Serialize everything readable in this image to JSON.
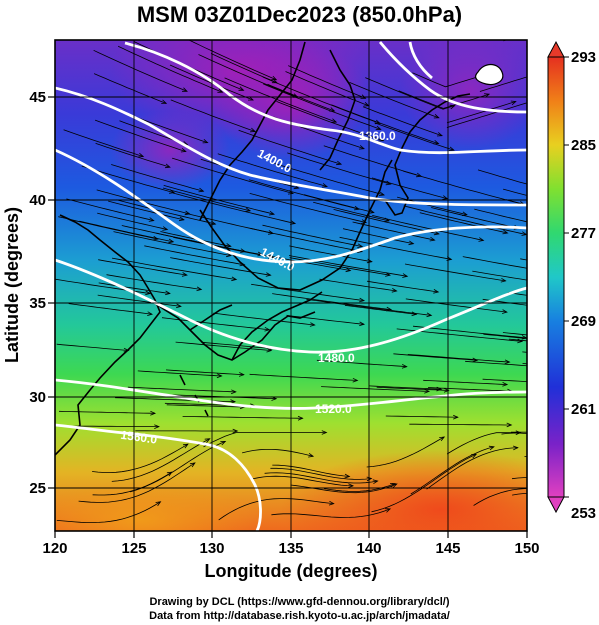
{
  "title": "MSM 03Z01Dec2023 (850.0hPa)",
  "axes": {
    "xlabel": "Longitude (degrees)",
    "ylabel": "Latitude  (degrees)",
    "x_range": [
      120,
      150
    ],
    "y_range": [
      22.4,
      47.6
    ],
    "x_ticks": [
      "120",
      "125",
      "130",
      "135",
      "140",
      "145",
      "150"
    ],
    "y_ticks": [
      "25",
      "30",
      "35",
      "40",
      "45"
    ]
  },
  "colorbar": {
    "ticks": [
      "293",
      "285",
      "277",
      "269",
      "261",
      "253"
    ],
    "range": [
      253,
      293
    ],
    "colors": [
      "#d53cc3",
      "#4b24c8",
      "#1d5ae0",
      "#20b8c8",
      "#2bd870",
      "#8be02e",
      "#f0c020",
      "#ef7b1a",
      "#e53a2a"
    ]
  },
  "contours": {
    "color": "#ffffff",
    "labels": [
      {
        "text": "1360.0",
        "lon": 139.2,
        "lat": 43.1
      },
      {
        "text": "1400.0",
        "lon": 133.8,
        "lat": 41.5
      },
      {
        "text": "1440.0",
        "lon": 134.1,
        "lat": 36.9
      },
      {
        "text": "1480.0",
        "lon": 137.5,
        "lat": 31.7
      },
      {
        "text": "1520.0",
        "lon": 136.8,
        "lat": 29.4
      },
      {
        "text": "1560.0",
        "lon": 125.7,
        "lat": 28.0
      }
    ]
  },
  "credits": {
    "line1": "Drawing by DCL (https://www.gfd-dennou.org/library/dcl/)",
    "line2": "Data from http://database.rish.kyoto-u.ac.jp/arch/jmadata/"
  }
}
